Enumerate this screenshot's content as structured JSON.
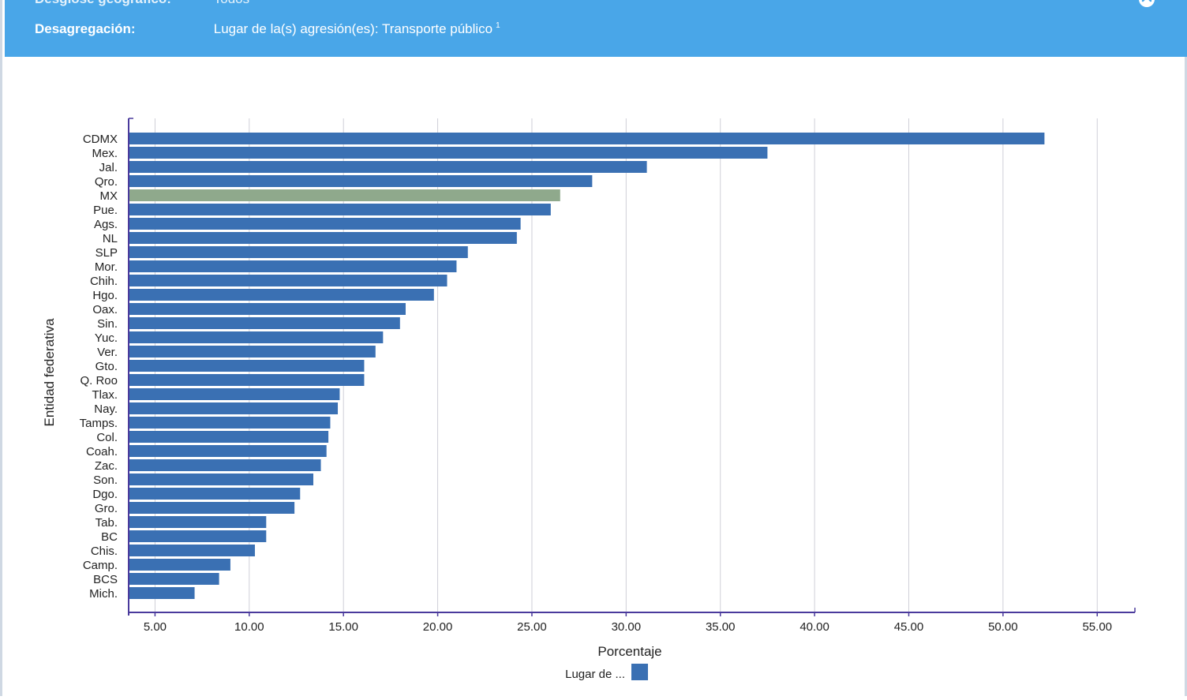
{
  "header": {
    "cut_row": {
      "label": "Desglose geográfico:",
      "value": "Todos"
    },
    "disaggregation": {
      "label": "Desagregación:",
      "value": "Lugar de la(s) agresión(es): Transporte público",
      "footnote": "1"
    }
  },
  "colors": {
    "header_bg": "#49a6e8",
    "bar": "#3a70b3",
    "bar_highlight": "#8fa98c",
    "grid": "#cfcfd8",
    "axis": "#4a3a9c"
  },
  "chart_data": {
    "type": "bar",
    "orientation": "horizontal",
    "xlabel": "Porcentaje",
    "ylabel": "Entidad federativa",
    "xlim": [
      3.6,
      57.0
    ],
    "x_ticks": [
      5,
      10,
      15,
      20,
      25,
      30,
      35,
      40,
      45,
      50,
      55
    ],
    "x_tick_labels": [
      "5.00",
      "10.00",
      "15.00",
      "20.00",
      "25.00",
      "30.00",
      "35.00",
      "40.00",
      "45.00",
      "50.00",
      "55.00"
    ],
    "grid": "vertical",
    "legend": {
      "label": "Lugar de ...",
      "color": "#3a70b3",
      "placement": "bottom-center"
    },
    "highlight_category": "MX",
    "categories": [
      "CDMX",
      "Mex.",
      "Jal.",
      "Qro.",
      "MX",
      "Pue.",
      "Ags.",
      "NL",
      "SLP",
      "Mor.",
      "Chih.",
      "Hgo.",
      "Oax.",
      "Sin.",
      "Yuc.",
      "Ver.",
      "Gto.",
      "Q. Roo",
      "Tlax.",
      "Nay.",
      "Tamps.",
      "Col.",
      "Coah.",
      "Zac.",
      "Son.",
      "Dgo.",
      "Gro.",
      "Tab.",
      "BC",
      "Chis.",
      "Camp.",
      "BCS",
      "Mich."
    ],
    "values": [
      52.2,
      37.5,
      31.1,
      28.2,
      26.5,
      26.0,
      24.4,
      24.2,
      21.6,
      21.0,
      20.5,
      19.8,
      18.3,
      18.0,
      17.1,
      16.7,
      16.1,
      16.1,
      14.8,
      14.7,
      14.3,
      14.2,
      14.1,
      13.8,
      13.4,
      12.7,
      12.4,
      10.9,
      10.9,
      10.3,
      9.0,
      8.4,
      7.1
    ]
  }
}
